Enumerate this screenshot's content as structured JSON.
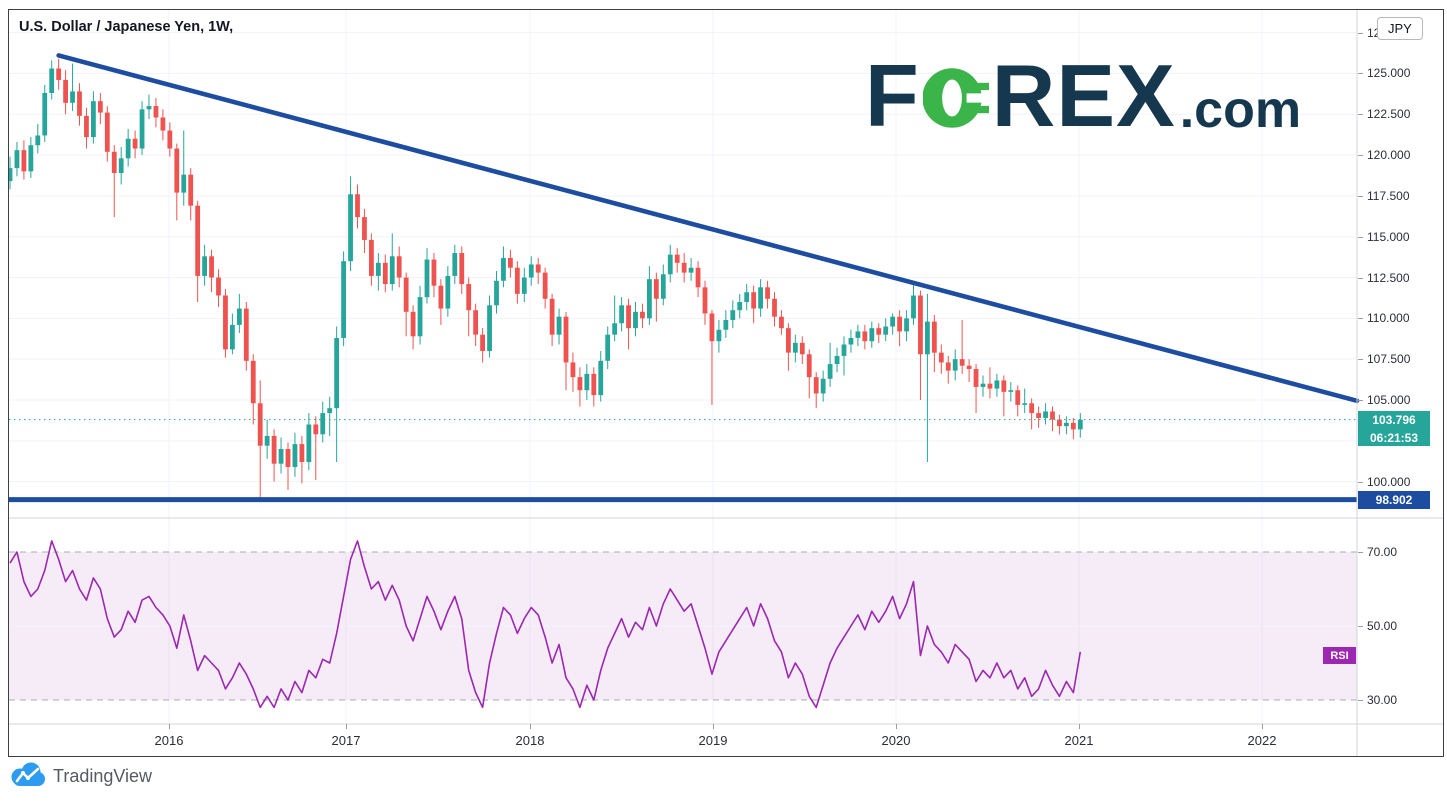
{
  "header": {
    "title": "U.S. Dollar / Japanese Yen, 1W,"
  },
  "watermark": {
    "part1": "F",
    "part2": "REX",
    "tld": ".com"
  },
  "price_axis": {
    "currency_badge": "JPY",
    "labeled_ticks": [
      "127.500",
      "125.000",
      "122.500",
      "120.000",
      "117.500",
      "115.000",
      "112.500",
      "110.000",
      "107.500",
      "105.000",
      "100.000"
    ],
    "last_price_label": "103.796",
    "countdown_label": "06:21:53",
    "support_label": "98.902"
  },
  "time_axis": {
    "years": [
      "2016",
      "2017",
      "2018",
      "2019",
      "2020",
      "2021",
      "2022"
    ]
  },
  "rsi_panel": {
    "label": "RSI",
    "ticks": [
      "70.00",
      "50.00",
      "30.00"
    ]
  },
  "footer": {
    "brand": "TradingView"
  },
  "colors": {
    "up": "#26a69a",
    "down": "#ef5350",
    "trend": "#1c4da1",
    "rsi": "#9c27b0",
    "grid": "#f0f3fa",
    "band_edge": "#a9abb5",
    "separator": "#d1d4dc",
    "navy": "#16384F",
    "green": "#3BB54A",
    "tv_blue": "#2D9BF0"
  },
  "chart_data": {
    "type": "candlestick",
    "title": "U.S. Dollar / Japanese Yen",
    "interval": "1W",
    "price_grid": [
      127.5,
      125,
      122.5,
      120,
      117.5,
      115,
      112.5,
      110,
      107.5,
      105,
      102.5,
      100
    ],
    "price_axis_range": [
      97.7,
      128.9
    ],
    "last_price": 103.796,
    "countdown": "06:21:53",
    "support_level": 98.902,
    "trendline": {
      "from_index": 7,
      "from_price": 126.1,
      "to_price": 104.95
    },
    "candles": [
      [
        118.4,
        119.9,
        117.9,
        119.2
      ],
      [
        119.2,
        120.8,
        118.7,
        120.3
      ],
      [
        120.3,
        120.9,
        118.5,
        119.0
      ],
      [
        119.0,
        121.1,
        118.6,
        120.6
      ],
      [
        120.6,
        121.9,
        120.1,
        121.2
      ],
      [
        121.2,
        124.3,
        120.8,
        123.8
      ],
      [
        123.8,
        125.8,
        123.4,
        125.3
      ],
      [
        125.3,
        125.9,
        124.0,
        124.6
      ],
      [
        124.6,
        125.2,
        122.5,
        123.2
      ],
      [
        123.2,
        125.6,
        122.7,
        123.9
      ],
      [
        123.9,
        124.4,
        121.8,
        122.4
      ],
      [
        122.4,
        122.9,
        120.4,
        121.1
      ],
      [
        121.1,
        123.9,
        120.7,
        123.3
      ],
      [
        123.3,
        123.8,
        121.9,
        122.6
      ],
      [
        122.6,
        123.0,
        119.6,
        120.2
      ],
      [
        120.2,
        120.6,
        116.2,
        118.9
      ],
      [
        118.9,
        120.5,
        118.2,
        119.8
      ],
      [
        119.8,
        121.6,
        119.3,
        121.0
      ],
      [
        121.0,
        121.5,
        119.8,
        120.4
      ],
      [
        120.4,
        123.3,
        120.0,
        122.8
      ],
      [
        122.8,
        123.7,
        122.2,
        123.0
      ],
      [
        123.0,
        123.5,
        121.7,
        122.3
      ],
      [
        122.3,
        122.8,
        120.9,
        121.5
      ],
      [
        121.5,
        122.0,
        119.9,
        120.4
      ],
      [
        120.4,
        120.7,
        116.0,
        117.7
      ],
      [
        117.7,
        121.5,
        116.9,
        118.8
      ],
      [
        118.8,
        119.2,
        116.0,
        116.9
      ],
      [
        116.9,
        117.2,
        111.0,
        112.6
      ],
      [
        112.6,
        114.5,
        112.0,
        113.8
      ],
      [
        113.8,
        114.2,
        111.6,
        112.5
      ],
      [
        112.5,
        113.0,
        110.7,
        111.4
      ],
      [
        111.4,
        111.8,
        107.6,
        108.1
      ],
      [
        108.1,
        110.3,
        107.8,
        109.6
      ],
      [
        109.6,
        111.5,
        109.1,
        110.6
      ],
      [
        110.6,
        111.0,
        106.8,
        107.4
      ],
      [
        107.4,
        107.8,
        103.5,
        104.8
      ],
      [
        104.8,
        106.2,
        98.9,
        102.2
      ],
      [
        102.2,
        103.8,
        101.4,
        102.8
      ],
      [
        102.8,
        103.2,
        100.0,
        101.1
      ],
      [
        101.1,
        102.7,
        100.5,
        102.0
      ],
      [
        102.0,
        102.4,
        99.5,
        100.9
      ],
      [
        100.9,
        103.0,
        100.3,
        102.3
      ],
      [
        102.3,
        102.8,
        99.9,
        101.2
      ],
      [
        101.2,
        104.2,
        100.7,
        103.5
      ],
      [
        103.5,
        104.0,
        100.1,
        102.9
      ],
      [
        102.9,
        104.9,
        102.4,
        104.2
      ],
      [
        104.2,
        105.2,
        102.8,
        104.5
      ],
      [
        104.5,
        109.5,
        101.2,
        108.8
      ],
      [
        108.8,
        114.1,
        108.3,
        113.5
      ],
      [
        113.5,
        118.7,
        112.9,
        117.6
      ],
      [
        117.6,
        118.2,
        115.5,
        116.2
      ],
      [
        116.2,
        116.7,
        114.0,
        114.8
      ],
      [
        114.8,
        115.2,
        112.0,
        112.6
      ],
      [
        112.6,
        114.0,
        111.7,
        113.4
      ],
      [
        113.4,
        113.9,
        111.6,
        112.1
      ],
      [
        112.1,
        115.2,
        111.7,
        113.8
      ],
      [
        113.8,
        114.4,
        111.9,
        112.5
      ],
      [
        112.5,
        112.8,
        108.9,
        110.4
      ],
      [
        110.4,
        110.8,
        108.1,
        108.9
      ],
      [
        108.9,
        112.0,
        108.4,
        111.3
      ],
      [
        111.3,
        114.3,
        110.9,
        113.6
      ],
      [
        113.6,
        114.0,
        111.3,
        112.0
      ],
      [
        112.0,
        112.4,
        109.6,
        110.6
      ],
      [
        110.6,
        113.2,
        110.1,
        112.6
      ],
      [
        112.6,
        114.5,
        112.1,
        114.0
      ],
      [
        114.0,
        114.4,
        111.5,
        112.1
      ],
      [
        112.1,
        112.5,
        108.9,
        110.5
      ],
      [
        110.5,
        110.9,
        108.3,
        109.0
      ],
      [
        109.0,
        109.4,
        107.3,
        108.0
      ],
      [
        108.0,
        111.4,
        107.6,
        110.8
      ],
      [
        110.8,
        112.9,
        110.3,
        112.3
      ],
      [
        112.3,
        114.4,
        111.9,
        113.7
      ],
      [
        113.7,
        114.2,
        112.5,
        113.1
      ],
      [
        113.1,
        113.5,
        110.9,
        111.5
      ],
      [
        111.5,
        113.1,
        111.0,
        112.5
      ],
      [
        112.5,
        113.8,
        112.0,
        113.3
      ],
      [
        113.3,
        113.7,
        112.1,
        112.8
      ],
      [
        112.8,
        113.1,
        110.6,
        111.2
      ],
      [
        111.2,
        111.5,
        108.3,
        109.0
      ],
      [
        109.0,
        110.6,
        108.4,
        110.1
      ],
      [
        110.1,
        110.4,
        105.6,
        107.3
      ],
      [
        107.3,
        107.9,
        105.5,
        106.4
      ],
      [
        106.4,
        107.0,
        104.6,
        105.6
      ],
      [
        105.6,
        107.2,
        105.0,
        106.6
      ],
      [
        106.6,
        107.0,
        104.6,
        105.3
      ],
      [
        105.3,
        108.0,
        104.9,
        107.4
      ],
      [
        107.4,
        109.5,
        106.9,
        109.0
      ],
      [
        109.0,
        111.4,
        108.6,
        109.7
      ],
      [
        109.7,
        111.3,
        109.2,
        110.8
      ],
      [
        110.8,
        111.2,
        108.1,
        109.4
      ],
      [
        109.4,
        111.0,
        108.9,
        110.4
      ],
      [
        110.4,
        110.9,
        109.4,
        110.0
      ],
      [
        110.0,
        113.2,
        109.6,
        112.4
      ],
      [
        112.4,
        112.8,
        109.8,
        111.2
      ],
      [
        111.2,
        113.3,
        110.8,
        112.7
      ],
      [
        112.7,
        114.5,
        112.2,
        113.9
      ],
      [
        113.9,
        114.3,
        112.8,
        113.4
      ],
      [
        113.4,
        114.0,
        112.2,
        112.8
      ],
      [
        112.8,
        113.7,
        112.3,
        113.1
      ],
      [
        113.1,
        113.5,
        111.3,
        111.9
      ],
      [
        111.9,
        112.3,
        109.6,
        110.3
      ],
      [
        110.3,
        110.5,
        104.7,
        108.6
      ],
      [
        108.6,
        109.9,
        107.9,
        109.3
      ],
      [
        109.3,
        110.5,
        108.8,
        109.9
      ],
      [
        109.9,
        111.1,
        109.4,
        110.5
      ],
      [
        110.5,
        111.5,
        110.0,
        111.0
      ],
      [
        111.0,
        112.1,
        110.5,
        111.6
      ],
      [
        111.6,
        112.0,
        109.7,
        110.6
      ],
      [
        110.6,
        112.4,
        110.1,
        111.9
      ],
      [
        111.9,
        112.3,
        110.6,
        111.2
      ],
      [
        111.2,
        111.6,
        109.5,
        110.1
      ],
      [
        110.1,
        110.5,
        109.0,
        109.4
      ],
      [
        109.4,
        109.7,
        106.8,
        107.9
      ],
      [
        107.9,
        109.0,
        107.3,
        108.5
      ],
      [
        108.5,
        108.9,
        107.2,
        107.8
      ],
      [
        107.8,
        108.1,
        105.1,
        106.4
      ],
      [
        106.4,
        106.7,
        104.5,
        105.4
      ],
      [
        105.4,
        106.8,
        104.9,
        106.3
      ],
      [
        106.3,
        108.5,
        105.8,
        107.2
      ],
      [
        107.2,
        108.2,
        106.7,
        107.7
      ],
      [
        107.7,
        108.9,
        106.5,
        108.4
      ],
      [
        108.4,
        109.3,
        107.9,
        108.8
      ],
      [
        108.8,
        109.6,
        108.3,
        109.2
      ],
      [
        109.2,
        109.6,
        108.1,
        108.6
      ],
      [
        108.6,
        109.8,
        108.2,
        109.4
      ],
      [
        109.4,
        109.7,
        108.5,
        109.0
      ],
      [
        109.0,
        110.0,
        108.6,
        109.5
      ],
      [
        109.5,
        110.3,
        109.0,
        110.1
      ],
      [
        110.1,
        110.5,
        108.3,
        109.2
      ],
      [
        109.2,
        110.5,
        108.6,
        110.0
      ],
      [
        110.0,
        112.2,
        109.6,
        111.4
      ],
      [
        111.4,
        111.7,
        105.0,
        107.8
      ],
      [
        107.8,
        111.5,
        101.2,
        109.8
      ],
      [
        109.8,
        110.2,
        106.7,
        107.9
      ],
      [
        107.9,
        108.4,
        106.6,
        107.3
      ],
      [
        107.3,
        107.7,
        106.0,
        106.8
      ],
      [
        106.8,
        108.1,
        106.2,
        107.5
      ],
      [
        107.5,
        109.9,
        106.6,
        107.1
      ],
      [
        107.1,
        107.5,
        106.1,
        106.9
      ],
      [
        106.9,
        107.2,
        104.2,
        105.8
      ],
      [
        105.8,
        106.5,
        105.2,
        106.0
      ],
      [
        106.0,
        107.0,
        105.1,
        105.7
      ],
      [
        105.7,
        106.6,
        105.2,
        106.2
      ],
      [
        106.2,
        106.5,
        104.0,
        105.5
      ],
      [
        105.5,
        106.1,
        104.9,
        105.6
      ],
      [
        105.6,
        105.9,
        104.0,
        104.7
      ],
      [
        104.7,
        105.7,
        104.2,
        104.8
      ],
      [
        104.8,
        105.1,
        103.2,
        104.2
      ],
      [
        104.2,
        104.6,
        103.3,
        103.9
      ],
      [
        103.9,
        104.8,
        103.5,
        104.3
      ],
      [
        104.3,
        104.6,
        103.1,
        103.8
      ],
      [
        103.8,
        104.1,
        102.9,
        103.4
      ],
      [
        103.4,
        104.0,
        102.9,
        103.6
      ],
      [
        103.6,
        103.9,
        102.6,
        103.2
      ],
      [
        103.2,
        104.2,
        102.7,
        103.796
      ]
    ],
    "rsi": {
      "upper_band": 70,
      "lower_band": 30,
      "mid": 50,
      "values": [
        67,
        70,
        62,
        58,
        60,
        65,
        73,
        68,
        62,
        65,
        60,
        57,
        63,
        60,
        52,
        47,
        49,
        54,
        51,
        57,
        58,
        55,
        53,
        50,
        44,
        53,
        46,
        38,
        42,
        40,
        38,
        33,
        36,
        40,
        37,
        33,
        28,
        31,
        28,
        33,
        30,
        35,
        32,
        38,
        36,
        41,
        40,
        48,
        58,
        68,
        73,
        66,
        60,
        62,
        57,
        61,
        57,
        50,
        46,
        52,
        58,
        54,
        49,
        54,
        58,
        52,
        38,
        32,
        28,
        40,
        48,
        55,
        53,
        48,
        52,
        55,
        53,
        47,
        40,
        45,
        36,
        33,
        28,
        34,
        30,
        38,
        44,
        48,
        52,
        47,
        51,
        49,
        55,
        50,
        56,
        60,
        57,
        54,
        56,
        50,
        44,
        37,
        43,
        46,
        49,
        52,
        55,
        50,
        56,
        52,
        46,
        43,
        36,
        40,
        37,
        31,
        28,
        34,
        40,
        44,
        47,
        50,
        53,
        49,
        54,
        51,
        54,
        58,
        52,
        56,
        62,
        42,
        50,
        45,
        43,
        40,
        45,
        43,
        41,
        35,
        38,
        36,
        40,
        36,
        38,
        33,
        36,
        31,
        33,
        38,
        34,
        31,
        35,
        32,
        43
      ]
    }
  }
}
